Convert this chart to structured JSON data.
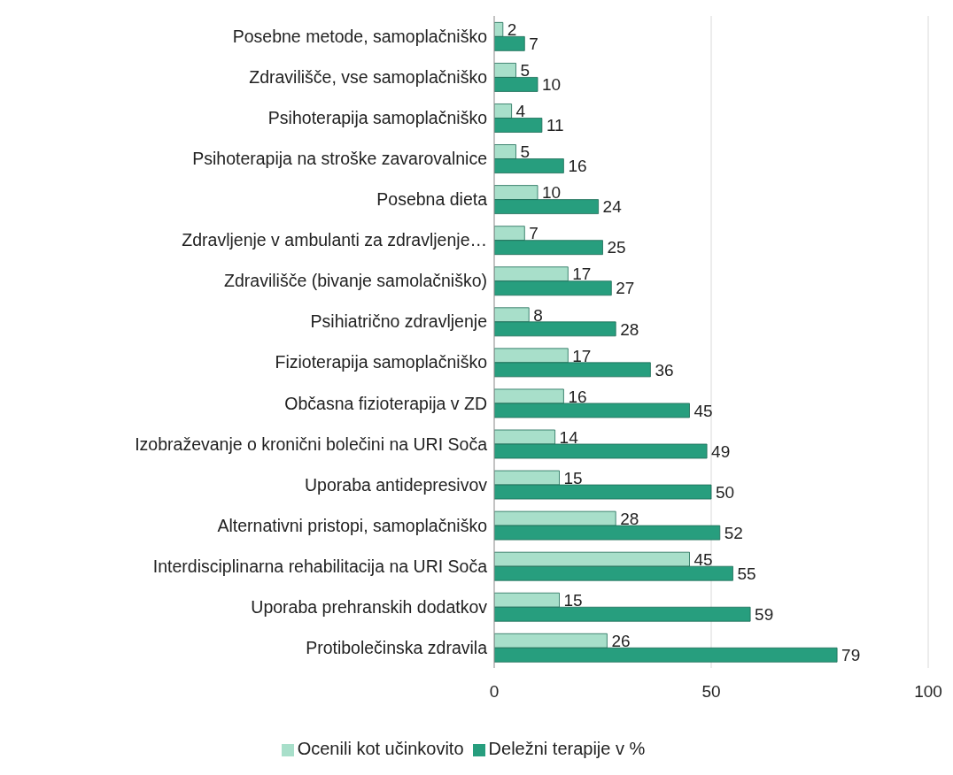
{
  "chart_data": {
    "type": "bar",
    "orientation": "horizontal",
    "categories": [
      "Posebne metode, samoplačniško",
      "Zdravilišče, vse samoplačniško",
      "Psihoterapija samoplačniško",
      "Psihoterapija na stroške zavarovalnice",
      "Posebna dieta",
      "Zdravljenje v ambulanti za zdravljenje…",
      "Zdravilišče (bivanje samolačniško)",
      "Psihiatrično zdravljenje",
      "Fizioterapija samoplačniško",
      "Občasna fizioterapija v ZD",
      "Izobraževanje o kronični bolečini na URI Soča",
      "Uporaba antidepresivov",
      "Alternativni pristopi, samoplačniško",
      "Interdisciplinarna rehabilitacija na URI Soča",
      "Uporaba prehranskih dodatkov",
      "Protibolečinska zdravila"
    ],
    "series": [
      {
        "name": "Ocenili kot učinkovito",
        "color": "#a8dfca",
        "values": [
          2,
          5,
          4,
          5,
          10,
          7,
          17,
          8,
          17,
          16,
          14,
          15,
          28,
          45,
          15,
          26
        ]
      },
      {
        "name": "Deležni terapije v %",
        "color": "#279e7e",
        "values": [
          7,
          10,
          11,
          16,
          24,
          25,
          27,
          28,
          36,
          45,
          49,
          50,
          52,
          55,
          59,
          79
        ]
      }
    ],
    "xlim": [
      0,
      100
    ],
    "xticks": [
      0,
      50,
      100
    ],
    "grid": "x",
    "legend": "bottom",
    "data_labels": true
  }
}
